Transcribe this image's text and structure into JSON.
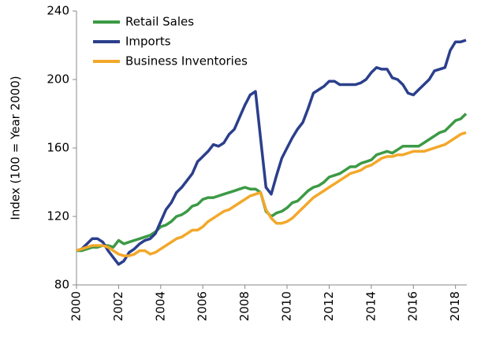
{
  "chart_data": {
    "type": "line",
    "y_label": "Index (100 = Year 2000)",
    "x": [
      2000,
      2000.25,
      2000.5,
      2000.75,
      2001,
      2001.25,
      2001.5,
      2001.75,
      2002,
      2002.25,
      2002.5,
      2002.75,
      2003,
      2003.25,
      2003.5,
      2003.75,
      2004,
      2004.25,
      2004.5,
      2004.75,
      2005,
      2005.25,
      2005.5,
      2005.75,
      2006,
      2006.25,
      2006.5,
      2006.75,
      2007,
      2007.25,
      2007.5,
      2007.75,
      2008,
      2008.25,
      2008.5,
      2008.75,
      2009,
      2009.25,
      2009.5,
      2009.75,
      2010,
      2010.25,
      2010.5,
      2010.75,
      2011,
      2011.25,
      2011.5,
      2011.75,
      2012,
      2012.25,
      2012.5,
      2012.75,
      2013,
      2013.25,
      2013.5,
      2013.75,
      2014,
      2014.25,
      2014.5,
      2014.75,
      2015,
      2015.25,
      2015.5,
      2015.75,
      2016,
      2016.25,
      2016.5,
      2016.75,
      2017,
      2017.25,
      2017.5,
      2017.75,
      2018,
      2018.25,
      2018.5
    ],
    "series": [
      {
        "name": "Retail Sales",
        "color": "#3c9a45",
        "values": [
          100,
          100,
          101,
          102,
          102,
          103,
          103,
          102,
          106,
          104,
          105,
          106,
          107,
          108,
          109,
          111,
          114,
          115,
          117,
          120,
          121,
          123,
          126,
          127,
          130,
          131,
          131,
          132,
          133,
          134,
          135,
          136,
          137,
          136,
          136,
          134,
          123,
          120,
          122,
          123,
          125,
          128,
          129,
          132,
          135,
          137,
          138,
          140,
          143,
          144,
          145,
          147,
          149,
          149,
          151,
          152,
          153,
          156,
          157,
          158,
          157,
          159,
          161,
          161,
          161,
          161,
          163,
          165,
          167,
          169,
          170,
          173,
          176,
          177,
          180
        ]
      },
      {
        "name": "Imports",
        "color": "#2b3f8c",
        "values": [
          100,
          101,
          104,
          107,
          107,
          105,
          100,
          96,
          92,
          94,
          99,
          101,
          104,
          106,
          107,
          110,
          117,
          124,
          128,
          134,
          137,
          141,
          145,
          152,
          155,
          158,
          162,
          161,
          163,
          168,
          171,
          178,
          185,
          191,
          193,
          165,
          137,
          133,
          144,
          154,
          160,
          166,
          171,
          175,
          183,
          192,
          194,
          196,
          199,
          199,
          197,
          197,
          197,
          197,
          198,
          200,
          204,
          207,
          206,
          206,
          201,
          200,
          197,
          192,
          191,
          194,
          197,
          200,
          205,
          206,
          207,
          217,
          222,
          222,
          223
        ]
      },
      {
        "name": "Business Inventories",
        "color": "#f3a82a",
        "values": [
          100,
          101,
          102,
          103,
          103,
          103,
          102,
          100,
          98,
          97,
          97,
          98,
          100,
          100,
          98,
          99,
          101,
          103,
          105,
          107,
          108,
          110,
          112,
          112,
          114,
          117,
          119,
          121,
          123,
          124,
          126,
          128,
          130,
          132,
          133,
          134,
          124,
          119,
          116,
          116,
          117,
          119,
          122,
          125,
          128,
          131,
          133,
          135,
          137,
          139,
          141,
          143,
          145,
          146,
          147,
          149,
          150,
          152,
          154,
          155,
          155,
          156,
          156,
          157,
          158,
          158,
          158,
          159,
          160,
          161,
          162,
          164,
          166,
          168,
          169
        ]
      }
    ],
    "xlim": [
      2000,
      2018.5
    ],
    "xticks": [
      2000,
      2002,
      2004,
      2006,
      2008,
      2010,
      2012,
      2014,
      2016,
      2018
    ],
    "ylim": [
      80,
      240
    ],
    "yticks": [
      80,
      120,
      160,
      200,
      240
    ],
    "legend": "upper-left"
  }
}
